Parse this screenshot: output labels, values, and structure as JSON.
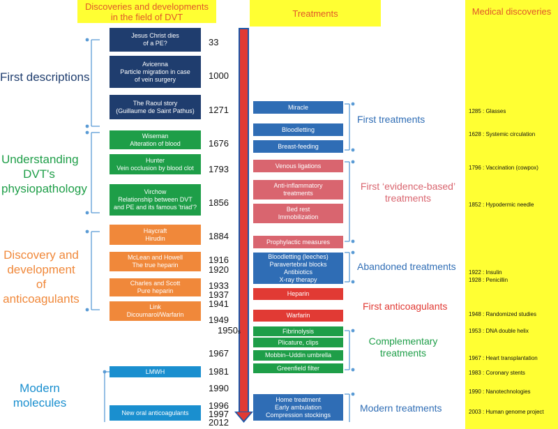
{
  "headers": {
    "discoveries": "Discoveries and developments in the field of DVT",
    "treatments": "Treatments",
    "medical": "Medical discoveries"
  },
  "sections": {
    "first": "First descriptions",
    "physio": "Understanding DVT's physiopathology",
    "anticoag": "Discovery and development of anticoagulants",
    "modern": "Modern molecules"
  },
  "discovery_boxes": [
    {
      "lines": [
        "Jesus Christ dies",
        "of a PE?"
      ]
    },
    {
      "lines": [
        "Avicenna",
        "Particle migration in case",
        "of vein surgery"
      ]
    },
    {
      "lines": [
        "The Raoul story",
        "(Guillaume de Saint Pathus)"
      ]
    },
    {
      "lines": [
        "Wiseman",
        "Alteration of blood"
      ]
    },
    {
      "lines": [
        "Hunter",
        "Vein occlusion by blood clot"
      ]
    },
    {
      "lines": [
        "Virchow",
        "Relationship between DVT",
        "and PE and its  famous 'triad'?"
      ]
    },
    {
      "lines": [
        "Haycraft",
        "Hirudin"
      ]
    },
    {
      "lines": [
        "McLean and Howell",
        "The true heparin"
      ]
    },
    {
      "lines": [
        "Charles and Scott",
        "Pure heparin"
      ]
    },
    {
      "lines": [
        "Link",
        "Dicoumarol/Warfarin"
      ]
    },
    {
      "lines": [
        "LMWH"
      ]
    },
    {
      "lines": [
        "New oral anticoagulants"
      ]
    }
  ],
  "years": [
    "33",
    "1000",
    "1271",
    "1676",
    "1793",
    "1856",
    "1884",
    "1916",
    "1920",
    "1933",
    "1937",
    "1941",
    "1949",
    "1950",
    "1967",
    "1981",
    "1990",
    "1996",
    "1997",
    "2012"
  ],
  "year_suffix_1950": "s",
  "treatment_boxes": [
    {
      "lines": [
        "Miracle"
      ]
    },
    {
      "lines": [
        "Bloodletting"
      ]
    },
    {
      "lines": [
        "Breast-feeding"
      ]
    },
    {
      "lines": [
        "Venous ligations"
      ]
    },
    {
      "lines": [
        "Anti-inflammatory",
        "treatments"
      ]
    },
    {
      "lines": [
        "Bed rest",
        "Immobilization"
      ]
    },
    {
      "lines": [
        "Prophylactic measures"
      ]
    },
    {
      "lines": [
        "Bloodletting (leeches)",
        "Paravertebral blocks",
        "Antibiotics",
        "X-ray therapy"
      ]
    },
    {
      "lines": [
        "Heparin"
      ]
    },
    {
      "lines": [
        "Warfarin"
      ]
    },
    {
      "lines": [
        "Fibrinolysis"
      ]
    },
    {
      "lines": [
        "Plicature, clips"
      ]
    },
    {
      "lines": [
        "Mobbin–Uddin umbrella"
      ]
    },
    {
      "lines": [
        "Greenfield filter"
      ]
    },
    {
      "lines": [
        "Home treatment",
        "Early ambulation",
        "Compression stockings"
      ]
    }
  ],
  "treatment_labels": {
    "first": "First treatments",
    "evidence": "First ‘evidence-based’ treatments",
    "abandoned": "Abandoned treatments",
    "anticoag": "First anticoagulants",
    "complementary": "Complementary treatments",
    "modern": "Modern treatments"
  },
  "medical_discoveries": [
    "1285 : Glasses",
    "1628 : Systemic circulation",
    "1796 : Vaccination (cowpox)",
    "1852 : Hypodermic needle",
    "1922 : Insulin",
    "1928 : Penicillin",
    "1948 : Randomized studies",
    "1953 : DNA double helix",
    "1967 : Heart transplantation",
    "1983 : Coronary stents",
    "1990 : Nanotechnologies",
    "2003 : Human genome project"
  ],
  "colors": {
    "header_bg": "#ffff33",
    "header_text": "#e0582a",
    "navy": "#1f3d6e",
    "green": "#1e9e48",
    "orange": "#f0883a",
    "blue": "#2f6db5",
    "pink": "#d9656f",
    "red": "#e13a34",
    "cyan": "#1a8fcf",
    "arrow": "#e13a34"
  }
}
